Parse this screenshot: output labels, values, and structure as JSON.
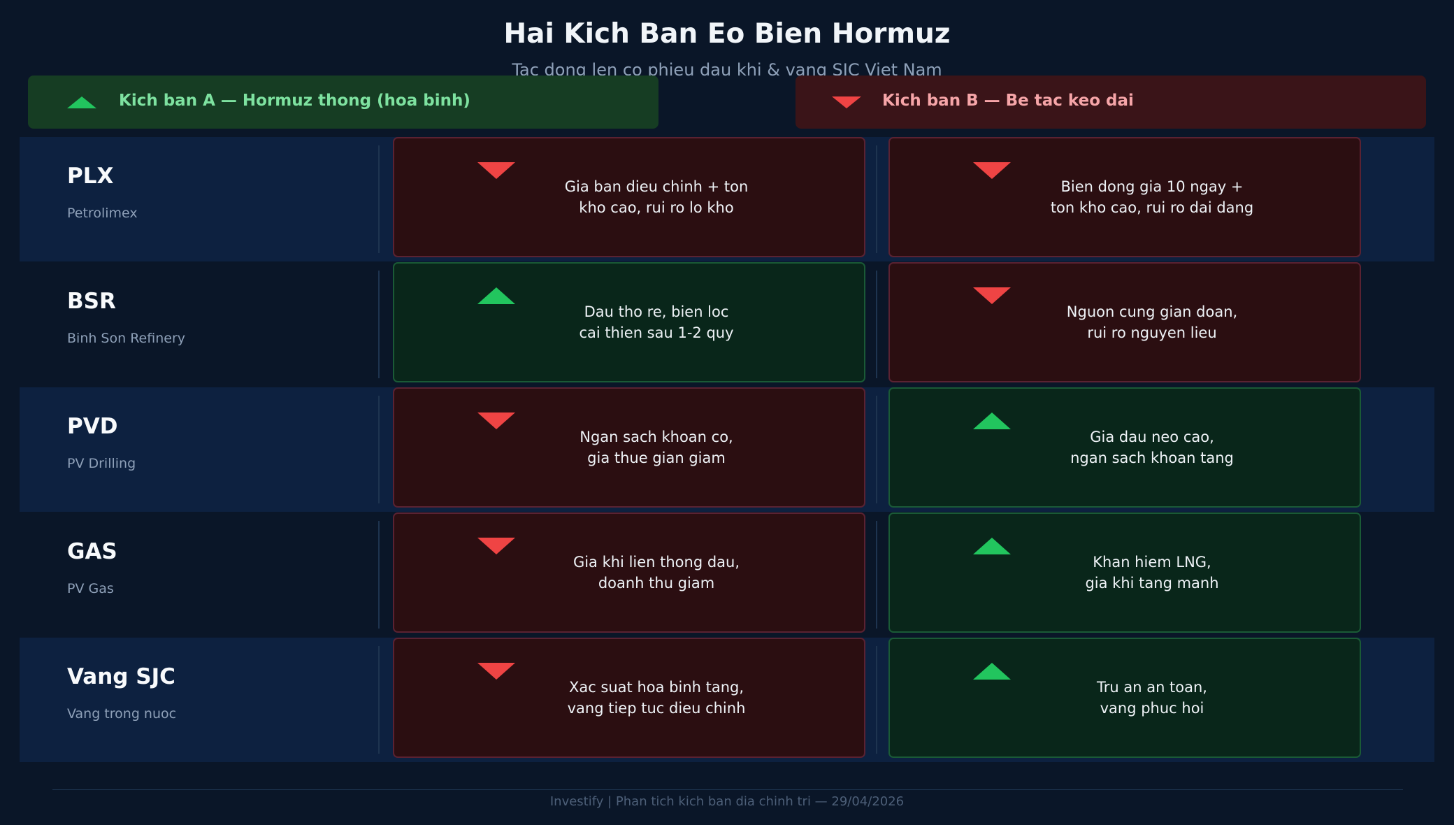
{
  "title": "Hai Kich Ban Eo Bien Hormuz",
  "subtitle": "Tac dong len co phieu dau khi & vang SJC Viet Nam",
  "scenarios": {
    "a": {
      "label": "Kich ban A — Hormuz thong (hoa binh)",
      "icon": "triangle-up-icon",
      "color": "#22c55e"
    },
    "b": {
      "label": "Kich ban B — Be tac keo dai",
      "icon": "triangle-down-icon",
      "color": "#ef4444"
    }
  },
  "rows": [
    {
      "ticker": "PLX",
      "company": "Petrolimex",
      "a": {
        "direction": "down",
        "text": "Gia ban dieu chinh + ton\nkho cao, rui ro lo kho"
      },
      "b": {
        "direction": "down",
        "text": "Bien dong gia 10 ngay +\nton kho cao, rui ro dai dang"
      }
    },
    {
      "ticker": "BSR",
      "company": "Binh Son Refinery",
      "a": {
        "direction": "up",
        "text": "Dau tho re, bien loc\ncai thien sau 1-2 quy"
      },
      "b": {
        "direction": "down",
        "text": "Nguon cung gian doan,\nrui ro nguyen lieu"
      }
    },
    {
      "ticker": "PVD",
      "company": "PV Drilling",
      "a": {
        "direction": "down",
        "text": "Ngan sach khoan co,\ngia thue gian giam"
      },
      "b": {
        "direction": "up",
        "text": "Gia dau neo cao,\nngan sach khoan tang"
      }
    },
    {
      "ticker": "GAS",
      "company": "PV Gas",
      "a": {
        "direction": "down",
        "text": "Gia khi lien thong dau,\ndoanh thu giam"
      },
      "b": {
        "direction": "up",
        "text": "Khan hiem LNG,\ngia khi tang manh"
      }
    },
    {
      "ticker": "Vang SJC",
      "company": "Vang trong nuoc",
      "a": {
        "direction": "down",
        "text": "Xac suat hoa binh tang,\nvang tiep tuc dieu chinh"
      },
      "b": {
        "direction": "up",
        "text": "Tru an an toan,\nvang phuc hoi"
      }
    }
  ],
  "footer": "Investify  |  Phan tich kich ban dia chinh tri — 29/04/2026"
}
